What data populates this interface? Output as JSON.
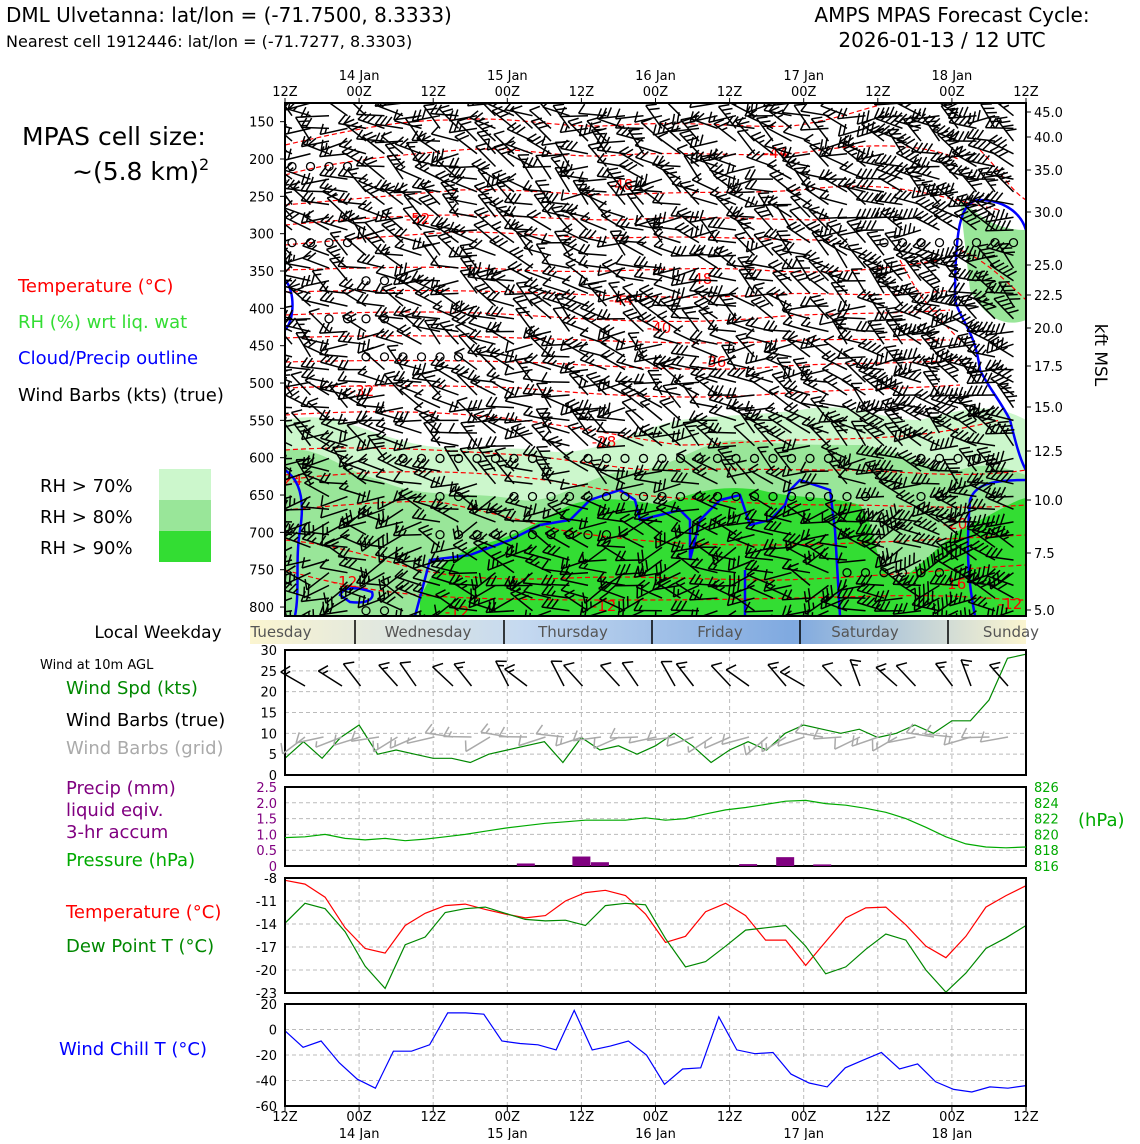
{
  "header": {
    "station_line": "DML Ulvetanna: lat/lon = (-71.7500, 8.3333)",
    "nearest_line": "Nearest cell 1912446: lat/lon = (-71.7277, 8.3303)",
    "cycle_line1": "AMPS MPAS Forecast Cycle:",
    "cycle_line2": "2026-01-13 / 12 UTC"
  },
  "cell": {
    "line1": "MPAS cell size:",
    "line2": "~(5.8 km)",
    "sup": "2"
  },
  "legend": {
    "temperature": "Temperature (°C)",
    "rh": "RH (%) wrt liq. wat",
    "cloud": "Cloud/Precip outline",
    "barbs": "Wind Barbs (kts) (true)",
    "rh70": "RH > 70%",
    "rh80": "RH > 80%",
    "rh90": "RH > 90%",
    "colors": {
      "temp": "#ff0000",
      "rh": "#33dd33",
      "cloud": "#0000ff",
      "rh70": "#ccf7cc",
      "rh80": "#99e699",
      "rh90": "#33dd33"
    }
  },
  "time_axis": {
    "top_hours": [
      "12Z",
      "00Z",
      "12Z",
      "00Z",
      "12Z",
      "00Z",
      "12Z",
      "00Z",
      "12Z",
      "00Z",
      "12Z"
    ],
    "dates": [
      {
        "label": "14 Jan",
        "tick": 1
      },
      {
        "label": "15 Jan",
        "tick": 3
      },
      {
        "label": "16 Jan",
        "tick": 5
      },
      {
        "label": "17 Jan",
        "tick": 7
      },
      {
        "label": "18 Jan",
        "tick": 9
      }
    ]
  },
  "weekday_bar": {
    "label": "Local Weekday",
    "days": [
      "Tuesday",
      "Wednesday",
      "Thursday",
      "Friday",
      "Saturday",
      "Sunday"
    ]
  },
  "panels": {
    "wind": {
      "title": "Wind at 10m AGL",
      "spd_label": "Wind Spd (kts)",
      "barb_true_label": "Wind Barbs (true)",
      "barb_grid_label": "Wind Barbs (grid)"
    },
    "precip": {
      "line1": "Precip (mm)",
      "line2": "liquid eqiv.",
      "line3": "3-hr accum",
      "pressure_label": "Pressure (hPa)",
      "unit": "(hPa)"
    },
    "temp": {
      "temp_label": "Temperature (°C)",
      "dew_label": "Dew Point T (°C)"
    },
    "chill": {
      "label": "Wind Chill T (°C)"
    }
  },
  "chart_data": [
    {
      "type": "heatmap",
      "name": "cross-section",
      "ylabel_right": "kft MSL",
      "pressure_ticks": [
        150,
        200,
        250,
        300,
        350,
        400,
        450,
        500,
        550,
        600,
        650,
        700,
        750,
        800
      ],
      "height_ticks": [
        "45.0",
        "40.0",
        "35.0",
        "30.0",
        "25.0",
        "22.5",
        "20.0",
        "17.5",
        "15.0",
        "12.5",
        "10.0",
        "7.5",
        "5.0"
      ],
      "temp_contour_labels": [
        "-44",
        "-48",
        "-52",
        "-48",
        "-44",
        "-40",
        "-36",
        "-32",
        "-28",
        "-24",
        "-20",
        "-16",
        "-12",
        "-12",
        "-12",
        "-12"
      ]
    },
    {
      "type": "line",
      "name": "10m wind speed",
      "x_hours": [
        0,
        3,
        6,
        9,
        12,
        15,
        18,
        21,
        24,
        27,
        30,
        33,
        36,
        39,
        42,
        45,
        48,
        51,
        54,
        57,
        60,
        63,
        66,
        69,
        72,
        75,
        78,
        81,
        84,
        87,
        90,
        93,
        96,
        99,
        102,
        105,
        108,
        111,
        114,
        117,
        120
      ],
      "values": [
        4,
        8,
        4,
        9,
        12,
        5,
        6,
        5,
        4,
        4,
        3,
        5,
        6,
        7,
        8,
        3,
        9,
        6,
        7,
        5,
        7,
        10,
        7,
        3,
        6,
        8,
        6,
        10,
        12,
        11,
        10,
        11,
        9,
        10,
        12,
        10,
        13,
        13,
        18,
        28,
        29
      ],
      "ylim": [
        0,
        30
      ],
      "yticks": [
        0,
        5,
        10,
        15,
        20,
        25,
        30
      ]
    },
    {
      "type": "bar",
      "name": "precipitation",
      "x_hours": [
        39,
        48,
        51,
        75,
        81,
        87
      ],
      "values": [
        0.08,
        0.3,
        0.12,
        0.06,
        0.28,
        0.05
      ],
      "ylim": [
        0,
        2.5
      ],
      "yticks": [
        "0",
        "0.5",
        "1.0",
        "1.5",
        "2.0",
        "2.5"
      ]
    },
    {
      "type": "line",
      "name": "pressure",
      "values": [
        819.6,
        819.7,
        820.0,
        819.5,
        819.3,
        819.5,
        819.2,
        819.4,
        819.7,
        820.0,
        820.4,
        820.8,
        821.1,
        821.4,
        821.6,
        821.8,
        821.8,
        821.8,
        822.1,
        821.8,
        822.0,
        822.6,
        823.1,
        823.4,
        823.8,
        824.2,
        824.3,
        823.9,
        823.7,
        823.3,
        822.8,
        822.0,
        820.9,
        819.7,
        818.8,
        818.4,
        818.3,
        818.4
      ],
      "ylim": [
        816,
        826
      ],
      "yticks": [
        "816",
        "818",
        "820",
        "822",
        "824",
        "826"
      ]
    },
    {
      "type": "line",
      "name": "temperature and dew point",
      "series": [
        {
          "name": "Temperature",
          "values": [
            -8.3,
            -8.8,
            -10.5,
            -14.5,
            -17.2,
            -17.8,
            -14.2,
            -12.6,
            -11.6,
            -11.4,
            -12.1,
            -12.7,
            -13.2,
            -12.9,
            -11.0,
            -9.9,
            -9.6,
            -10.3,
            -12.7,
            -16.4,
            -15.6,
            -12.4,
            -11.3,
            -12.9,
            -16.1,
            -16.1,
            -19.4,
            -16.3,
            -13.2,
            -11.9,
            -11.8,
            -14.1,
            -16.9,
            -18.4,
            -15.6,
            -11.8,
            -10.3,
            -9.0
          ]
        },
        {
          "name": "Dew Point",
          "values": [
            -13.9,
            -11.3,
            -12.0,
            -15.0,
            -19.5,
            -22.4,
            -16.7,
            -15.7,
            -12.5,
            -12.0,
            -11.8,
            -12.6,
            -13.4,
            -13.6,
            -13.5,
            -14.2,
            -11.6,
            -11.3,
            -11.5,
            -15.9,
            -19.6,
            -18.9,
            -16.9,
            -14.8,
            -14.5,
            -14.2,
            -16.9,
            -20.5,
            -19.6,
            -17.3,
            -15.3,
            -16.1,
            -20.0,
            -22.9,
            -20.4,
            -17.2,
            -15.8,
            -14.2
          ]
        }
      ],
      "ylim": [
        -23,
        -8
      ],
      "yticks": [
        "-8",
        "-11",
        "-14",
        "-17",
        "-20",
        "-23"
      ]
    },
    {
      "type": "line",
      "name": "wind chill",
      "values": [
        -1,
        -14,
        -9,
        -26,
        -39,
        -46,
        -17,
        -17,
        -12,
        13,
        13,
        12,
        -9,
        -11,
        -12,
        -16,
        15,
        -16,
        -13,
        -9,
        -20,
        -43,
        -31,
        -30,
        10,
        -16,
        -19,
        -18,
        -35,
        -42,
        -45,
        -30,
        -24,
        -18,
        -31,
        -27,
        -41,
        -47,
        -49,
        -45,
        -46,
        -44
      ],
      "ylim": [
        -60,
        20
      ],
      "yticks": [
        "20",
        "0",
        "-20",
        "-40",
        "-60"
      ]
    }
  ]
}
